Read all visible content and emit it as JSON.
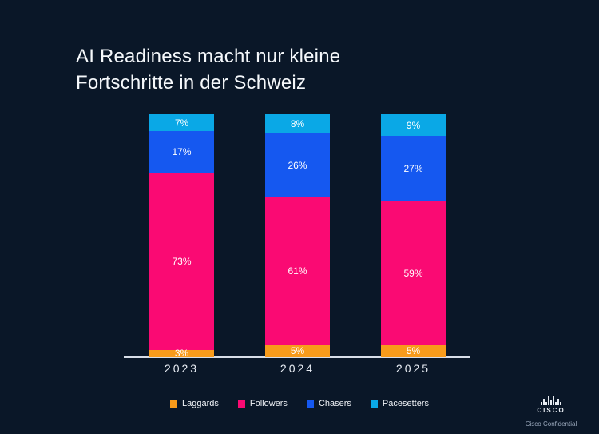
{
  "title": "AI Readiness macht nur kleine\nFortschritte in der Schweiz",
  "chart_data": {
    "type": "bar",
    "stacked": true,
    "percent_of_total": true,
    "categories": [
      "2023",
      "2024",
      "2025"
    ],
    "series": [
      {
        "name": "Laggards",
        "color": "#F89B1B",
        "values": [
          3,
          5,
          5
        ]
      },
      {
        "name": "Followers",
        "color": "#FA0A73",
        "values": [
          73,
          61,
          59
        ]
      },
      {
        "name": "Chasers",
        "color": "#1558F0",
        "values": [
          17,
          26,
          27
        ]
      },
      {
        "name": "Pacesetters",
        "color": "#0AA8E6",
        "values": [
          7,
          8,
          9
        ]
      }
    ],
    "value_suffix": "%",
    "ylim": [
      0,
      100
    ],
    "grid": false,
    "legend_position": "bottom"
  },
  "footer": {
    "logo_text": "CISCO",
    "confidential": "Cisco Confidential"
  },
  "colors": {
    "background": "#0A1728",
    "title_text": "#F5F8FB",
    "axis_line": "#D8DEE8",
    "value_label_text": "#FFFFFF"
  }
}
